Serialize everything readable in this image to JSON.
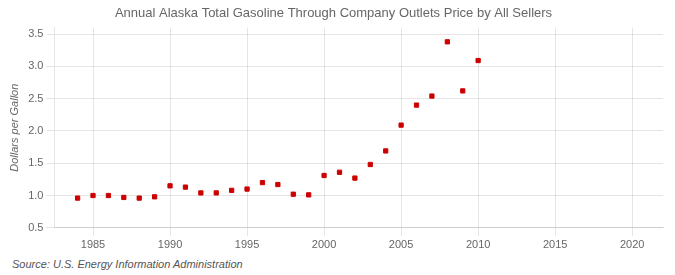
{
  "chart_data": {
    "type": "scatter",
    "title": "Annual Alaska Total Gasoline Through Company Outlets Price by All Sellers",
    "ylabel": "Dollars per Gallon",
    "annotations": [
      "Source: U.S. Energy Information Administration"
    ],
    "x": [
      1984,
      1985,
      1986,
      1987,
      1988,
      1989,
      1990,
      1991,
      1992,
      1993,
      1994,
      1995,
      1996,
      1997,
      1998,
      1999,
      2000,
      2001,
      2002,
      2003,
      2004,
      2005,
      2006,
      2007,
      2008,
      2009,
      2010
    ],
    "values": [
      0.96,
      1.0,
      1.0,
      0.97,
      0.96,
      0.98,
      1.15,
      1.13,
      1.04,
      1.04,
      1.08,
      1.1,
      1.2,
      1.17,
      1.02,
      1.01,
      1.31,
      1.36,
      1.27,
      1.48,
      1.69,
      2.09,
      2.4,
      2.54,
      3.38,
      2.62,
      3.09
    ],
    "color": "#cc0000",
    "marker": "square",
    "xlim": [
      1982.5,
      2022
    ],
    "xticks": [
      1985,
      1990,
      1995,
      2000,
      2005,
      2010,
      2015,
      2020
    ],
    "ylim": [
      0.5,
      3.6
    ],
    "yticks": [
      0.5,
      {
        "value": 1.0,
        "label": "1.0"
      },
      1.5,
      {
        "value": 2.0,
        "label": "2.0"
      },
      2.5,
      {
        "value": 3.0,
        "label": "3.0"
      },
      3.5
    ],
    "grid": true
  }
}
